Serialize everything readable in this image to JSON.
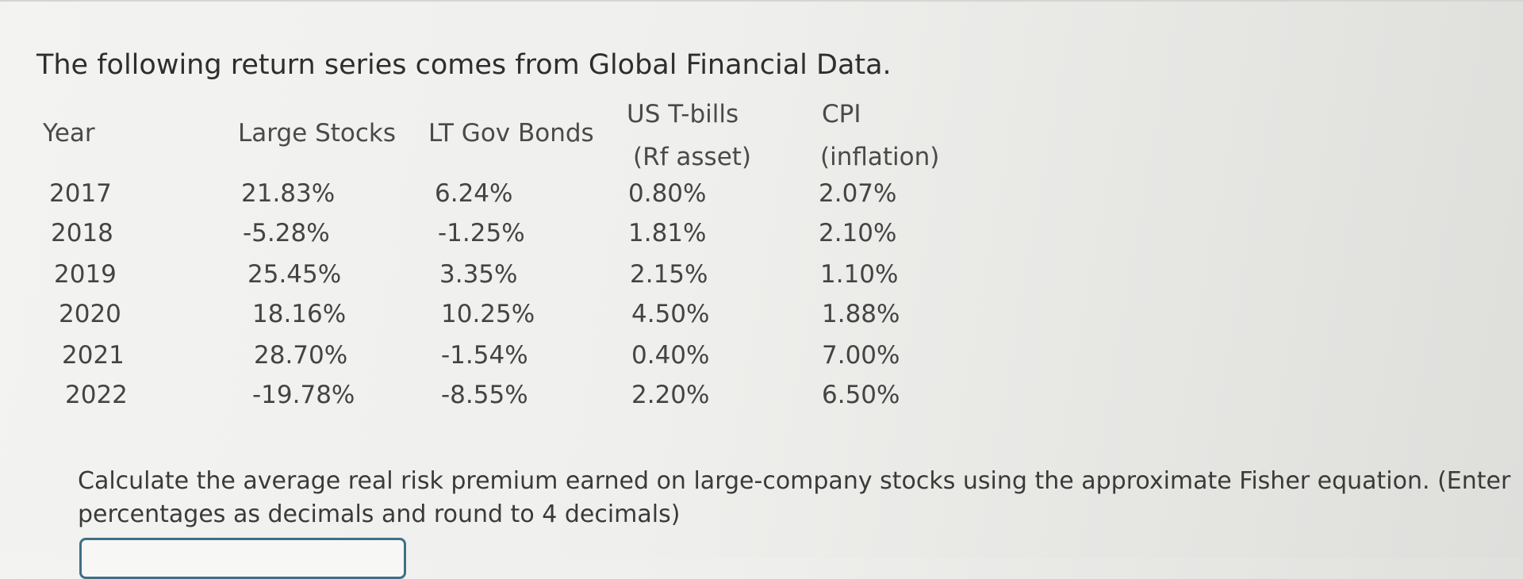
{
  "intro": "The following return series comes from Global Financial Data.",
  "table": {
    "headers": {
      "year": "Year",
      "large_stocks": "Large Stocks",
      "lt_gov_bonds": "LT Gov Bonds",
      "us_tbills_1": "US T-bills",
      "us_tbills_2": "(Rf asset)",
      "cpi_1": "CPI",
      "cpi_2": "(inflation)"
    },
    "rows": [
      {
        "year": "2017",
        "large": "21.83%",
        "lt": "6.24%",
        "tb": "0.80%",
        "cpi": "2.07%"
      },
      {
        "year": "2018",
        "large": "-5.28%",
        "lt": "-1.25%",
        "tb": "1.81%",
        "cpi": "2.10%"
      },
      {
        "year": "2019",
        "large": "25.45%",
        "lt": "3.35%",
        "tb": "2.15%",
        "cpi": "1.10%"
      },
      {
        "year": "2020",
        "large": "18.16%",
        "lt": "10.25%",
        "tb": "4.50%",
        "cpi": "1.88%"
      },
      {
        "year": "2021",
        "large": "28.70%",
        "lt": "-1.54%",
        "tb": "0.40%",
        "cpi": "7.00%"
      },
      {
        "year": "2022",
        "large": "-19.78%",
        "lt": "-8.55%",
        "tb": "2.20%",
        "cpi": "6.50%"
      }
    ]
  },
  "question": "Calculate the average real risk premium earned on large-company stocks using the approximate Fisher equation. (Enter percentages as decimals and round to 4 decimals)",
  "answer": {
    "value": ""
  }
}
